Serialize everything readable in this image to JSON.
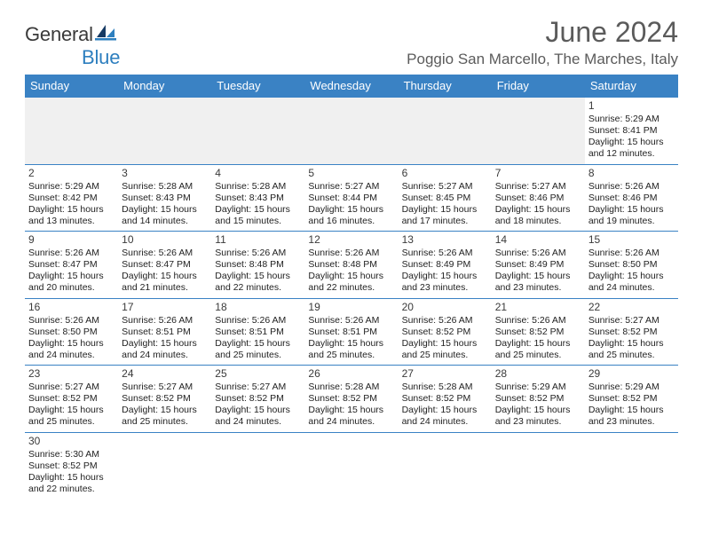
{
  "brand": {
    "part1": "General",
    "part2": "Blue"
  },
  "header": {
    "title": "June 2024",
    "location": "Poggio San Marcello, The Marches, Italy"
  },
  "colors": {
    "accent": "#3a82c4",
    "brand_blue": "#2e7fbf",
    "text": "#222222",
    "header_text": "#5b5b5b"
  },
  "daynames": [
    "Sunday",
    "Monday",
    "Tuesday",
    "Wednesday",
    "Thursday",
    "Friday",
    "Saturday"
  ],
  "weeks": [
    [
      null,
      null,
      null,
      null,
      null,
      null,
      {
        "n": "1",
        "sr": "5:29 AM",
        "ss": "8:41 PM",
        "dl": "15 hours and 12 minutes."
      }
    ],
    [
      {
        "n": "2",
        "sr": "5:29 AM",
        "ss": "8:42 PM",
        "dl": "15 hours and 13 minutes."
      },
      {
        "n": "3",
        "sr": "5:28 AM",
        "ss": "8:43 PM",
        "dl": "15 hours and 14 minutes."
      },
      {
        "n": "4",
        "sr": "5:28 AM",
        "ss": "8:43 PM",
        "dl": "15 hours and 15 minutes."
      },
      {
        "n": "5",
        "sr": "5:27 AM",
        "ss": "8:44 PM",
        "dl": "15 hours and 16 minutes."
      },
      {
        "n": "6",
        "sr": "5:27 AM",
        "ss": "8:45 PM",
        "dl": "15 hours and 17 minutes."
      },
      {
        "n": "7",
        "sr": "5:27 AM",
        "ss": "8:46 PM",
        "dl": "15 hours and 18 minutes."
      },
      {
        "n": "8",
        "sr": "5:26 AM",
        "ss": "8:46 PM",
        "dl": "15 hours and 19 minutes."
      }
    ],
    [
      {
        "n": "9",
        "sr": "5:26 AM",
        "ss": "8:47 PM",
        "dl": "15 hours and 20 minutes."
      },
      {
        "n": "10",
        "sr": "5:26 AM",
        "ss": "8:47 PM",
        "dl": "15 hours and 21 minutes."
      },
      {
        "n": "11",
        "sr": "5:26 AM",
        "ss": "8:48 PM",
        "dl": "15 hours and 22 minutes."
      },
      {
        "n": "12",
        "sr": "5:26 AM",
        "ss": "8:48 PM",
        "dl": "15 hours and 22 minutes."
      },
      {
        "n": "13",
        "sr": "5:26 AM",
        "ss": "8:49 PM",
        "dl": "15 hours and 23 minutes."
      },
      {
        "n": "14",
        "sr": "5:26 AM",
        "ss": "8:49 PM",
        "dl": "15 hours and 23 minutes."
      },
      {
        "n": "15",
        "sr": "5:26 AM",
        "ss": "8:50 PM",
        "dl": "15 hours and 24 minutes."
      }
    ],
    [
      {
        "n": "16",
        "sr": "5:26 AM",
        "ss": "8:50 PM",
        "dl": "15 hours and 24 minutes."
      },
      {
        "n": "17",
        "sr": "5:26 AM",
        "ss": "8:51 PM",
        "dl": "15 hours and 24 minutes."
      },
      {
        "n": "18",
        "sr": "5:26 AM",
        "ss": "8:51 PM",
        "dl": "15 hours and 25 minutes."
      },
      {
        "n": "19",
        "sr": "5:26 AM",
        "ss": "8:51 PM",
        "dl": "15 hours and 25 minutes."
      },
      {
        "n": "20",
        "sr": "5:26 AM",
        "ss": "8:52 PM",
        "dl": "15 hours and 25 minutes."
      },
      {
        "n": "21",
        "sr": "5:26 AM",
        "ss": "8:52 PM",
        "dl": "15 hours and 25 minutes."
      },
      {
        "n": "22",
        "sr": "5:27 AM",
        "ss": "8:52 PM",
        "dl": "15 hours and 25 minutes."
      }
    ],
    [
      {
        "n": "23",
        "sr": "5:27 AM",
        "ss": "8:52 PM",
        "dl": "15 hours and 25 minutes."
      },
      {
        "n": "24",
        "sr": "5:27 AM",
        "ss": "8:52 PM",
        "dl": "15 hours and 25 minutes."
      },
      {
        "n": "25",
        "sr": "5:27 AM",
        "ss": "8:52 PM",
        "dl": "15 hours and 24 minutes."
      },
      {
        "n": "26",
        "sr": "5:28 AM",
        "ss": "8:52 PM",
        "dl": "15 hours and 24 minutes."
      },
      {
        "n": "27",
        "sr": "5:28 AM",
        "ss": "8:52 PM",
        "dl": "15 hours and 24 minutes."
      },
      {
        "n": "28",
        "sr": "5:29 AM",
        "ss": "8:52 PM",
        "dl": "15 hours and 23 minutes."
      },
      {
        "n": "29",
        "sr": "5:29 AM",
        "ss": "8:52 PM",
        "dl": "15 hours and 23 minutes."
      }
    ],
    [
      {
        "n": "30",
        "sr": "5:30 AM",
        "ss": "8:52 PM",
        "dl": "15 hours and 22 minutes."
      },
      null,
      null,
      null,
      null,
      null,
      null
    ]
  ],
  "labels": {
    "sunrise": "Sunrise: ",
    "sunset": "Sunset: ",
    "daylight": "Daylight: "
  }
}
